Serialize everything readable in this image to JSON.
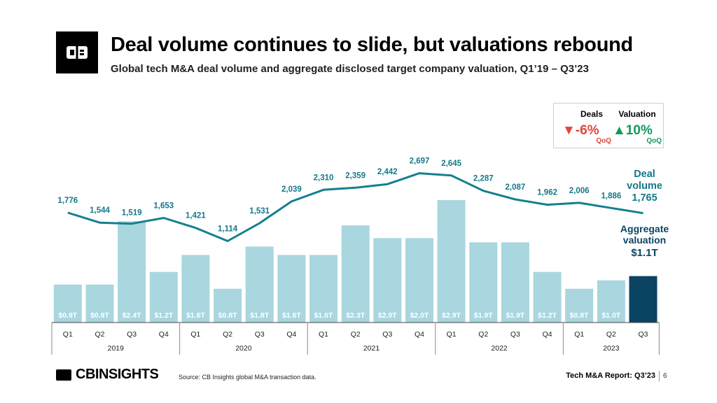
{
  "header": {
    "title": "Deal volume continues to slide, but valuations rebound",
    "subtitle": "Global tech M&A deal volume and aggregate disclosed target company valuation, Q1’19 – Q3’23"
  },
  "kpi": {
    "deals": {
      "label": "Deals",
      "value": "▼-6%",
      "sub": "QoQ"
    },
    "valuation": {
      "label": "Valuation",
      "value": "▲10%",
      "sub": "QoQ"
    }
  },
  "chart_data": {
    "type": "bar",
    "categories": [
      "Q1",
      "Q2",
      "Q3",
      "Q4",
      "Q1",
      "Q2",
      "Q3",
      "Q4",
      "Q1",
      "Q2",
      "Q3",
      "Q4",
      "Q1",
      "Q2",
      "Q3",
      "Q4",
      "Q1",
      "Q2",
      "Q3"
    ],
    "years": [
      {
        "label": "2019",
        "count": 4
      },
      {
        "label": "2020",
        "count": 4
      },
      {
        "label": "2021",
        "count": 4
      },
      {
        "label": "2022",
        "count": 4
      },
      {
        "label": "2023",
        "count": 3
      }
    ],
    "series": [
      {
        "type": "bar",
        "values": [
          0.9,
          0.9,
          2.4,
          1.2,
          1.6,
          0.8,
          1.8,
          1.6,
          1.6,
          2.3,
          2.0,
          2.0,
          2.9,
          1.9,
          1.9,
          1.2,
          0.8,
          1.0,
          1.1
        ],
        "labels": [
          "$0.9T",
          "$0.9T",
          "$2.4T",
          "$1.2T",
          "$1.6T",
          "$0.8T",
          "$1.8T",
          "$1.6T",
          "$1.6T",
          "$2.3T",
          "$2.0T",
          "$2.0T",
          "$2.9T",
          "$1.9T",
          "$1.9T",
          "$1.2T",
          "$0.8T",
          "$1.0T",
          "$1.1T"
        ]
      },
      {
        "type": "line",
        "values": [
          1776,
          1544,
          1519,
          1653,
          1421,
          1114,
          1531,
          2039,
          2310,
          2359,
          2442,
          2697,
          2645,
          2287,
          2087,
          1962,
          2006,
          1886,
          1765
        ],
        "labels": [
          "1,776",
          "1,544",
          "1,519",
          "1,653",
          "1,421",
          "1,114",
          "1,531",
          "2,039",
          "2,310",
          "2,359",
          "2,442",
          "2,697",
          "2,645",
          "2,287",
          "2,087",
          "1,962",
          "2,006",
          "1,886",
          "1,765"
        ]
      }
    ],
    "annotations": {
      "deal_volume": [
        "Deal",
        "volume"
      ],
      "aggregate_valuation": [
        "Aggregate",
        "valuation",
        "$1.1T"
      ]
    },
    "colors": {
      "bar": "#a9d6df",
      "bar_highlight": "#0b4463",
      "line": "#13808f",
      "line_label": "#13798a"
    },
    "grid": false,
    "legend": "none"
  },
  "footer": {
    "brand": "CBINSIGHTS",
    "source": "Source: CB Insights global M&A transaction data.",
    "report": "Tech M&A Report: Q3’23",
    "page": "6"
  }
}
